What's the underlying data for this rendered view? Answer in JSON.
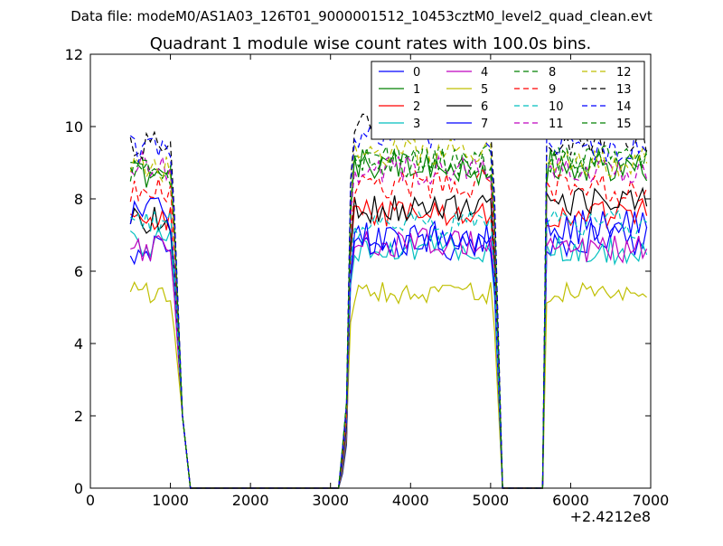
{
  "chart_data": {
    "type": "line",
    "suptitle": "Data file: modeM0/AS1A03_126T01_9000001512_10453cztM0_level2_quad_clean.evt",
    "title": "Quadrant 1 module wise count rates with 100.0s bins.",
    "xlabel": "",
    "ylabel": "",
    "offset_label": "+2.4212e8",
    "xlim": [
      0,
      7000
    ],
    "ylim": [
      0,
      12
    ],
    "xticks": [
      0,
      1000,
      2000,
      3000,
      4000,
      5000,
      6000,
      7000
    ],
    "yticks": [
      0,
      2,
      4,
      6,
      8,
      10,
      12
    ],
    "grid": false,
    "legend_position": "top-right",
    "legend_columns": 4,
    "segments": [
      {
        "x_start": 500,
        "x_end": 1000,
        "step": 50
      },
      {
        "x_start": 3300,
        "x_end": 5000,
        "step": 50
      },
      {
        "x_start": 5700,
        "x_end": 6950,
        "step": 50
      }
    ],
    "gap_points_x": [
      1050,
      1150,
      1250,
      3050,
      3150,
      3200,
      5050,
      5150,
      5650
    ],
    "gap_points_y": [
      6.0,
      2.0,
      0,
      0,
      0.3,
      1.2,
      6.0,
      0,
      0
    ],
    "series": [
      {
        "name": "0",
        "color": "#0000ff",
        "dash": "solid",
        "level_a": 6.6,
        "level_b": 6.8,
        "level_c": 6.9,
        "amp": 0.5,
        "seed": 1
      },
      {
        "name": "1",
        "color": "#008000",
        "dash": "solid",
        "level_a": 8.7,
        "level_b": 8.9,
        "level_c": 8.9,
        "amp": 0.5,
        "seed": 2
      },
      {
        "name": "2",
        "color": "#ff0000",
        "dash": "solid",
        "level_a": 7.4,
        "level_b": 7.6,
        "level_c": 7.6,
        "amp": 0.4,
        "seed": 3
      },
      {
        "name": "3",
        "color": "#00bfbf",
        "dash": "solid",
        "level_a": 6.8,
        "level_b": 6.6,
        "level_c": 6.6,
        "amp": 0.4,
        "seed": 4
      },
      {
        "name": "4",
        "color": "#bf00bf",
        "dash": "solid",
        "level_a": 6.6,
        "level_b": 6.8,
        "level_c": 6.6,
        "amp": 0.4,
        "seed": 5
      },
      {
        "name": "5",
        "color": "#bfbf00",
        "dash": "solid",
        "level_a": 5.4,
        "level_b": 5.4,
        "level_c": 5.4,
        "amp": 0.3,
        "seed": 6
      },
      {
        "name": "6",
        "color": "#000000",
        "dash": "solid",
        "level_a": 7.4,
        "level_b": 7.7,
        "level_c": 7.9,
        "amp": 0.4,
        "seed": 7
      },
      {
        "name": "7",
        "color": "#0000ff",
        "dash": "solid",
        "level_a": 7.6,
        "level_b": 6.9,
        "level_c": 7.2,
        "amp": 0.5,
        "seed": 8
      },
      {
        "name": "8",
        "color": "#008000",
        "dash": "dashed",
        "level_a": 8.7,
        "level_b": 9.1,
        "level_c": 9.0,
        "amp": 0.4,
        "seed": 9
      },
      {
        "name": "9",
        "color": "#ff0000",
        "dash": "dashed",
        "level_a": 8.3,
        "level_b": 8.4,
        "level_c": 8.3,
        "amp": 0.4,
        "seed": 10
      },
      {
        "name": "10",
        "color": "#00bfbf",
        "dash": "dashed",
        "level_a": 7.3,
        "level_b": 7.3,
        "level_c": 7.3,
        "amp": 0.4,
        "seed": 11
      },
      {
        "name": "11",
        "color": "#bf00bf",
        "dash": "dashed",
        "level_a": 8.9,
        "level_b": 8.8,
        "level_c": 8.8,
        "amp": 0.4,
        "seed": 12
      },
      {
        "name": "12",
        "color": "#bfbf00",
        "dash": "dashed",
        "level_a": 8.8,
        "level_b": 9.3,
        "level_c": 9.0,
        "amp": 0.4,
        "seed": 13
      },
      {
        "name": "13",
        "color": "#000000",
        "dash": "dashed",
        "level_a": 9.5,
        "level_b": 10.0,
        "level_c": 9.6,
        "amp": 0.4,
        "seed": 14
      },
      {
        "name": "14",
        "color": "#0000ff",
        "dash": "dashed",
        "level_a": 9.4,
        "level_b": 9.8,
        "level_c": 9.4,
        "amp": 0.4,
        "seed": 15
      },
      {
        "name": "15",
        "color": "#008000",
        "dash": "dashed",
        "level_a": 8.9,
        "level_b": 9.0,
        "level_c": 9.1,
        "amp": 0.4,
        "seed": 16
      }
    ]
  }
}
